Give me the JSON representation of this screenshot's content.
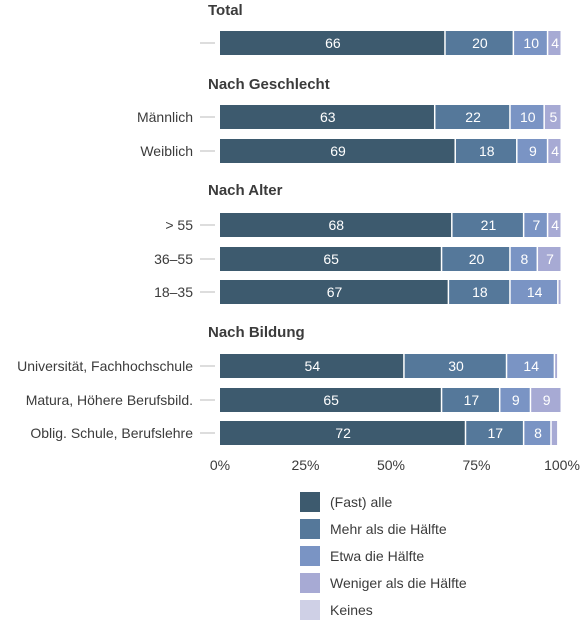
{
  "chart_data": {
    "type": "bar",
    "orientation": "horizontal",
    "stacked": true,
    "xlim": [
      0,
      100
    ],
    "xticks": [
      "0%",
      "25%",
      "50%",
      "75%",
      "100%"
    ],
    "legend_position": "bottom",
    "series": [
      {
        "name": "(Fast) alle",
        "color": "#3d5a6e"
      },
      {
        "name": "Mehr als die Hälfte",
        "color": "#55789a"
      },
      {
        "name": "Etwa die Hälfte",
        "color": "#7a94c4"
      },
      {
        "name": "Weniger als die Hälfte",
        "color": "#a7aad4"
      },
      {
        "name": "Keines",
        "color": "#cfd0e6"
      }
    ],
    "groups": [
      {
        "title": "Total",
        "rows": [
          {
            "label": "",
            "values": [
              66,
              20,
              10,
              4,
              0
            ]
          }
        ]
      },
      {
        "title": "Nach Geschlecht",
        "rows": [
          {
            "label": "Männlich",
            "values": [
              63,
              22,
              10,
              5,
              0
            ]
          },
          {
            "label": "Weiblich",
            "values": [
              69,
              18,
              9,
              4,
              0
            ]
          }
        ]
      },
      {
        "title": "Nach Alter",
        "rows": [
          {
            "label": "> 55",
            "values": [
              68,
              21,
              7,
              4,
              0
            ]
          },
          {
            "label": "36–55",
            "values": [
              65,
              20,
              8,
              7,
              0
            ]
          },
          {
            "label": "18–35",
            "values": [
              67,
              18,
              14,
              1,
              0
            ]
          }
        ]
      },
      {
        "title": "Nach Bildung",
        "rows": [
          {
            "label": "Universität, Fachhochschule",
            "values": [
              54,
              30,
              14,
              1,
              0
            ]
          },
          {
            "label": "Matura, Höhere Berufsbild.",
            "values": [
              65,
              17,
              9,
              9,
              0
            ]
          },
          {
            "label": "Oblig. Schule, Berufslehre",
            "values": [
              72,
              17,
              8,
              2,
              0
            ]
          }
        ]
      }
    ]
  }
}
